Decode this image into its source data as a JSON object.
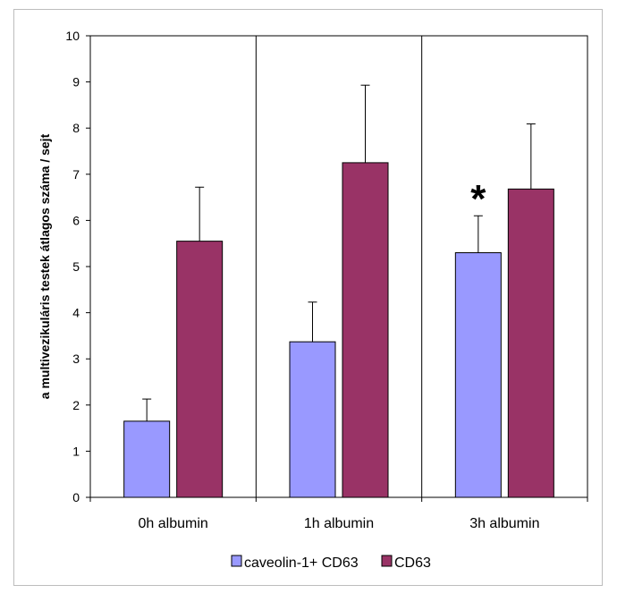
{
  "chart_data": {
    "type": "bar",
    "title": "",
    "xlabel": "",
    "ylabel": "a multivezikuláris testek átlagos száma / sejt",
    "ylim": [
      0,
      10
    ],
    "yticks": [
      0,
      1,
      2,
      3,
      4,
      5,
      6,
      7,
      8,
      9,
      10
    ],
    "categories": [
      "0h albumin",
      "1h albumin",
      "3h albumin"
    ],
    "series": [
      {
        "name": "caveolin-1+ CD63",
        "color": "#9999ff",
        "values": [
          1.65,
          3.37,
          5.3
        ],
        "errors": [
          0.48,
          0.86,
          0.8
        ]
      },
      {
        "name": "CD63",
        "color": "#993366",
        "values": [
          5.55,
          7.25,
          6.68
        ],
        "errors": [
          1.17,
          1.68,
          1.41
        ]
      }
    ],
    "annotations": [
      {
        "category": "3h albumin",
        "series": 0,
        "text": "*"
      }
    ],
    "grid": "vertical category separators",
    "legend": "bottom"
  }
}
